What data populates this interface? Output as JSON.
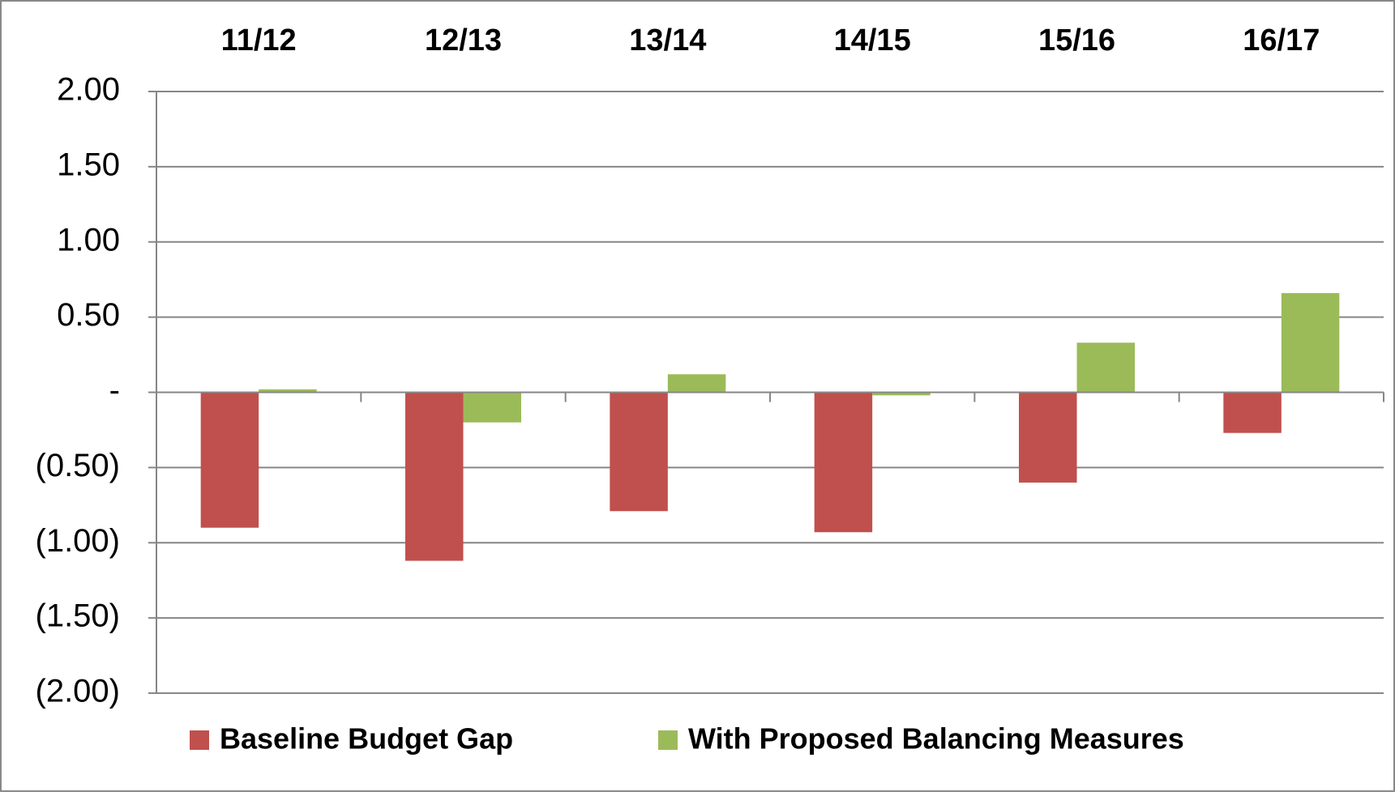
{
  "chart_data": {
    "type": "bar",
    "categories": [
      "11/12",
      "12/13",
      "13/14",
      "14/15",
      "15/16",
      "16/17"
    ],
    "series": [
      {
        "name": "Baseline Budget Gap",
        "color": "#c0504d",
        "values": [
          -0.9,
          -1.12,
          -0.79,
          -0.93,
          -0.6,
          -0.27
        ]
      },
      {
        "name": "With Proposed Balancing Measures",
        "color": "#9bbb59",
        "values": [
          0.02,
          -0.2,
          0.12,
          -0.02,
          0.33,
          0.66
        ]
      }
    ],
    "ylim": [
      -2,
      2
    ],
    "yticks": [
      {
        "value": 2,
        "label": "2.00"
      },
      {
        "value": 1.5,
        "label": "1.50"
      },
      {
        "value": 1,
        "label": "1.00"
      },
      {
        "value": 0.5,
        "label": "0.50"
      },
      {
        "value": 0,
        "label": "-"
      },
      {
        "value": -0.5,
        "label": "(0.50)"
      },
      {
        "value": -1,
        "label": "(1.00)"
      },
      {
        "value": -1.5,
        "label": "(1.50)"
      },
      {
        "value": -2,
        "label": "(2.00)"
      }
    ],
    "grid": true,
    "legend": "bottom"
  }
}
